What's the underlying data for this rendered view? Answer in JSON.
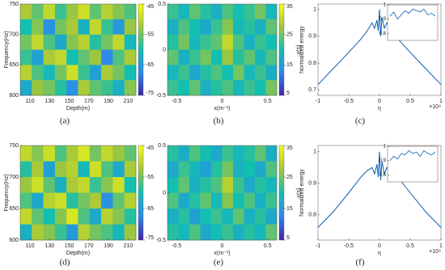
{
  "chart_data": [
    {
      "type": "heatmap",
      "label": "(a)",
      "xlabel": "Depth(m)",
      "ylabel": "Frequency(Hz)",
      "xlim": [
        100,
        218
      ],
      "xticks": [
        110,
        130,
        150,
        170,
        190,
        210
      ],
      "ylim": [
        600,
        750
      ],
      "yticks": [
        600,
        650,
        700,
        750
      ],
      "clim": [
        -75,
        -45
      ],
      "cticks": [
        -75,
        -65,
        -55,
        -45
      ],
      "z": [
        [
          -52,
          -56,
          -50,
          -58,
          -53,
          -49,
          -56,
          -51,
          -54,
          -57
        ],
        [
          -60,
          -54,
          -66,
          -55,
          -52,
          -62,
          -50,
          -58,
          -65,
          -53
        ],
        [
          -55,
          -50,
          -57,
          -63,
          -54,
          -51,
          -59,
          -55,
          -50,
          -61
        ],
        [
          -58,
          -64,
          -52,
          -50,
          -60,
          -56,
          -53,
          -67,
          -57,
          -52
        ],
        [
          -51,
          -57,
          -61,
          -55,
          -49,
          -58,
          -64,
          -52,
          -55,
          -60
        ],
        [
          -63,
          -53,
          -55,
          -59,
          -66,
          -52,
          -56,
          -58,
          -62,
          -54
        ]
      ]
    },
    {
      "type": "heatmap",
      "label": "(b)",
      "xlabel": "x(m⁻¹)",
      "ylabel": "y(s)",
      "xlim": [
        -0.6,
        0.6
      ],
      "xticks": [
        -0.5,
        0,
        0.5
      ],
      "ylim": [
        -0.5,
        0.5
      ],
      "yticks": [
        -0.5,
        0,
        0.5
      ],
      "clim": [
        5,
        35
      ],
      "cticks": [
        5,
        15,
        25,
        35
      ],
      "z": [
        [
          22,
          19,
          24,
          21,
          18,
          23,
          20,
          22,
          25,
          19
        ],
        [
          18,
          23,
          20,
          17,
          22,
          26,
          19,
          21,
          18,
          24
        ],
        [
          21,
          25,
          19,
          22,
          24,
          30,
          23,
          18,
          22,
          20
        ],
        [
          24,
          18,
          22,
          25,
          20,
          27,
          21,
          24,
          19,
          23
        ],
        [
          19,
          22,
          17,
          21,
          23,
          20,
          25,
          19,
          22,
          18
        ],
        [
          22,
          20,
          24,
          18,
          21,
          23,
          19,
          22,
          20,
          25
        ]
      ]
    },
    {
      "type": "line",
      "label": "(c)",
      "xlabel": "η",
      "ylabel": "Normalized energy",
      "xexp": "×10⁴",
      "color": "#0a5fb4",
      "x": [
        -1,
        -0.75,
        -0.5,
        -0.3,
        -0.2,
        -0.12,
        -0.08,
        -0.04,
        -0.02,
        0,
        0.02,
        0.04,
        0.08,
        0.12,
        0.2,
        0.3,
        0.5,
        0.75,
        1
      ],
      "values": [
        0.72,
        0.78,
        0.84,
        0.89,
        0.92,
        0.95,
        0.93,
        0.96,
        0.92,
        1.0,
        0.9,
        0.97,
        0.93,
        0.95,
        0.92,
        0.89,
        0.84,
        0.78,
        0.72
      ],
      "xlim": [
        -1,
        1
      ],
      "xticks": [
        -1,
        -0.5,
        0,
        0.5,
        1
      ],
      "ylim": [
        0.68,
        1.02
      ],
      "yticks": [
        0.7,
        0.8,
        0.9,
        1
      ],
      "inset": {
        "values": [
          0.92,
          0.95,
          0.9,
          0.93,
          0.96,
          0.94,
          0.97,
          0.96,
          0.95,
          0.97,
          0.93,
          0.94,
          0.92
        ],
        "ylim": [
          0.75,
          1.0
        ],
        "yticks": [
          0.8,
          0.9,
          1
        ]
      }
    },
    {
      "type": "heatmap",
      "label": "(d)",
      "xlabel": "Depth(m)",
      "ylabel": "Frequency(Hz)",
      "xlim": [
        100,
        218
      ],
      "xticks": [
        110,
        130,
        150,
        170,
        190,
        210
      ],
      "ylim": [
        600,
        750
      ],
      "yticks": [
        600,
        650,
        700,
        750
      ],
      "clim": [
        -75,
        -45
      ],
      "cticks": [
        -75,
        -65,
        -55,
        -45
      ],
      "z": [
        [
          -50,
          -54,
          -49,
          -57,
          -52,
          -48,
          -55,
          -50,
          -53,
          -56
        ],
        [
          -59,
          -52,
          -64,
          -53,
          -51,
          -61,
          -49,
          -57,
          -63,
          -52
        ],
        [
          -53,
          -49,
          -56,
          -62,
          -52,
          -50,
          -58,
          -54,
          -49,
          -60
        ],
        [
          -57,
          -63,
          -51,
          -49,
          -59,
          -55,
          -52,
          -66,
          -56,
          -51
        ],
        [
          -50,
          -56,
          -60,
          -54,
          -48,
          -57,
          -63,
          -51,
          -54,
          -59
        ],
        [
          -62,
          -52,
          -54,
          -58,
          -65,
          -51,
          -55,
          -57,
          -61,
          -53
        ]
      ]
    },
    {
      "type": "heatmap",
      "label": "(e)",
      "xlabel": "x(m⁻¹)",
      "ylabel": "y(s)",
      "xlim": [
        -0.6,
        0.6
      ],
      "xticks": [
        -0.5,
        0,
        0.5
      ],
      "ylim": [
        -0.5,
        0.5
      ],
      "yticks": [
        -0.5,
        0,
        0.5
      ],
      "clim": [
        5,
        35
      ],
      "cticks": [
        5,
        15,
        25,
        35
      ],
      "z": [
        [
          21,
          18,
          23,
          20,
          17,
          22,
          19,
          21,
          24,
          18
        ],
        [
          17,
          22,
          19,
          16,
          21,
          25,
          18,
          20,
          17,
          23
        ],
        [
          20,
          24,
          18,
          21,
          23,
          29,
          22,
          17,
          21,
          19
        ],
        [
          23,
          17,
          21,
          24,
          19,
          26,
          20,
          23,
          18,
          22
        ],
        [
          18,
          21,
          16,
          20,
          22,
          19,
          24,
          18,
          21,
          17
        ],
        [
          21,
          19,
          23,
          17,
          20,
          22,
          18,
          21,
          19,
          24
        ]
      ]
    },
    {
      "type": "line",
      "label": "(f)",
      "xlabel": "η",
      "ylabel": "Normalized energy",
      "xexp": "×10⁴",
      "color": "#0a5fb4",
      "x": [
        -1,
        -0.75,
        -0.5,
        -0.3,
        -0.2,
        -0.12,
        -0.08,
        -0.04,
        -0.02,
        0,
        0.02,
        0.04,
        0.08,
        0.12,
        0.2,
        0.3,
        0.5,
        0.75,
        1
      ],
      "values": [
        0.76,
        0.81,
        0.87,
        0.92,
        0.94,
        0.95,
        0.93,
        0.96,
        0.92,
        1.0,
        0.91,
        0.97,
        0.93,
        0.95,
        0.93,
        0.92,
        0.87,
        0.81,
        0.76
      ],
      "xlim": [
        -1,
        1
      ],
      "xticks": [
        -1,
        -0.5,
        0,
        0.5,
        1
      ],
      "ylim": [
        0.72,
        1.02
      ],
      "yticks": [
        0.8,
        0.9,
        1
      ],
      "inset": {
        "values": [
          0.9,
          0.93,
          0.91,
          0.95,
          0.94,
          0.97,
          0.95,
          0.96,
          0.93,
          0.97,
          0.95,
          0.94,
          0.96
        ],
        "ylim": [
          0.75,
          1.0
        ],
        "yticks": [
          0.8,
          0.9,
          1
        ]
      }
    }
  ]
}
